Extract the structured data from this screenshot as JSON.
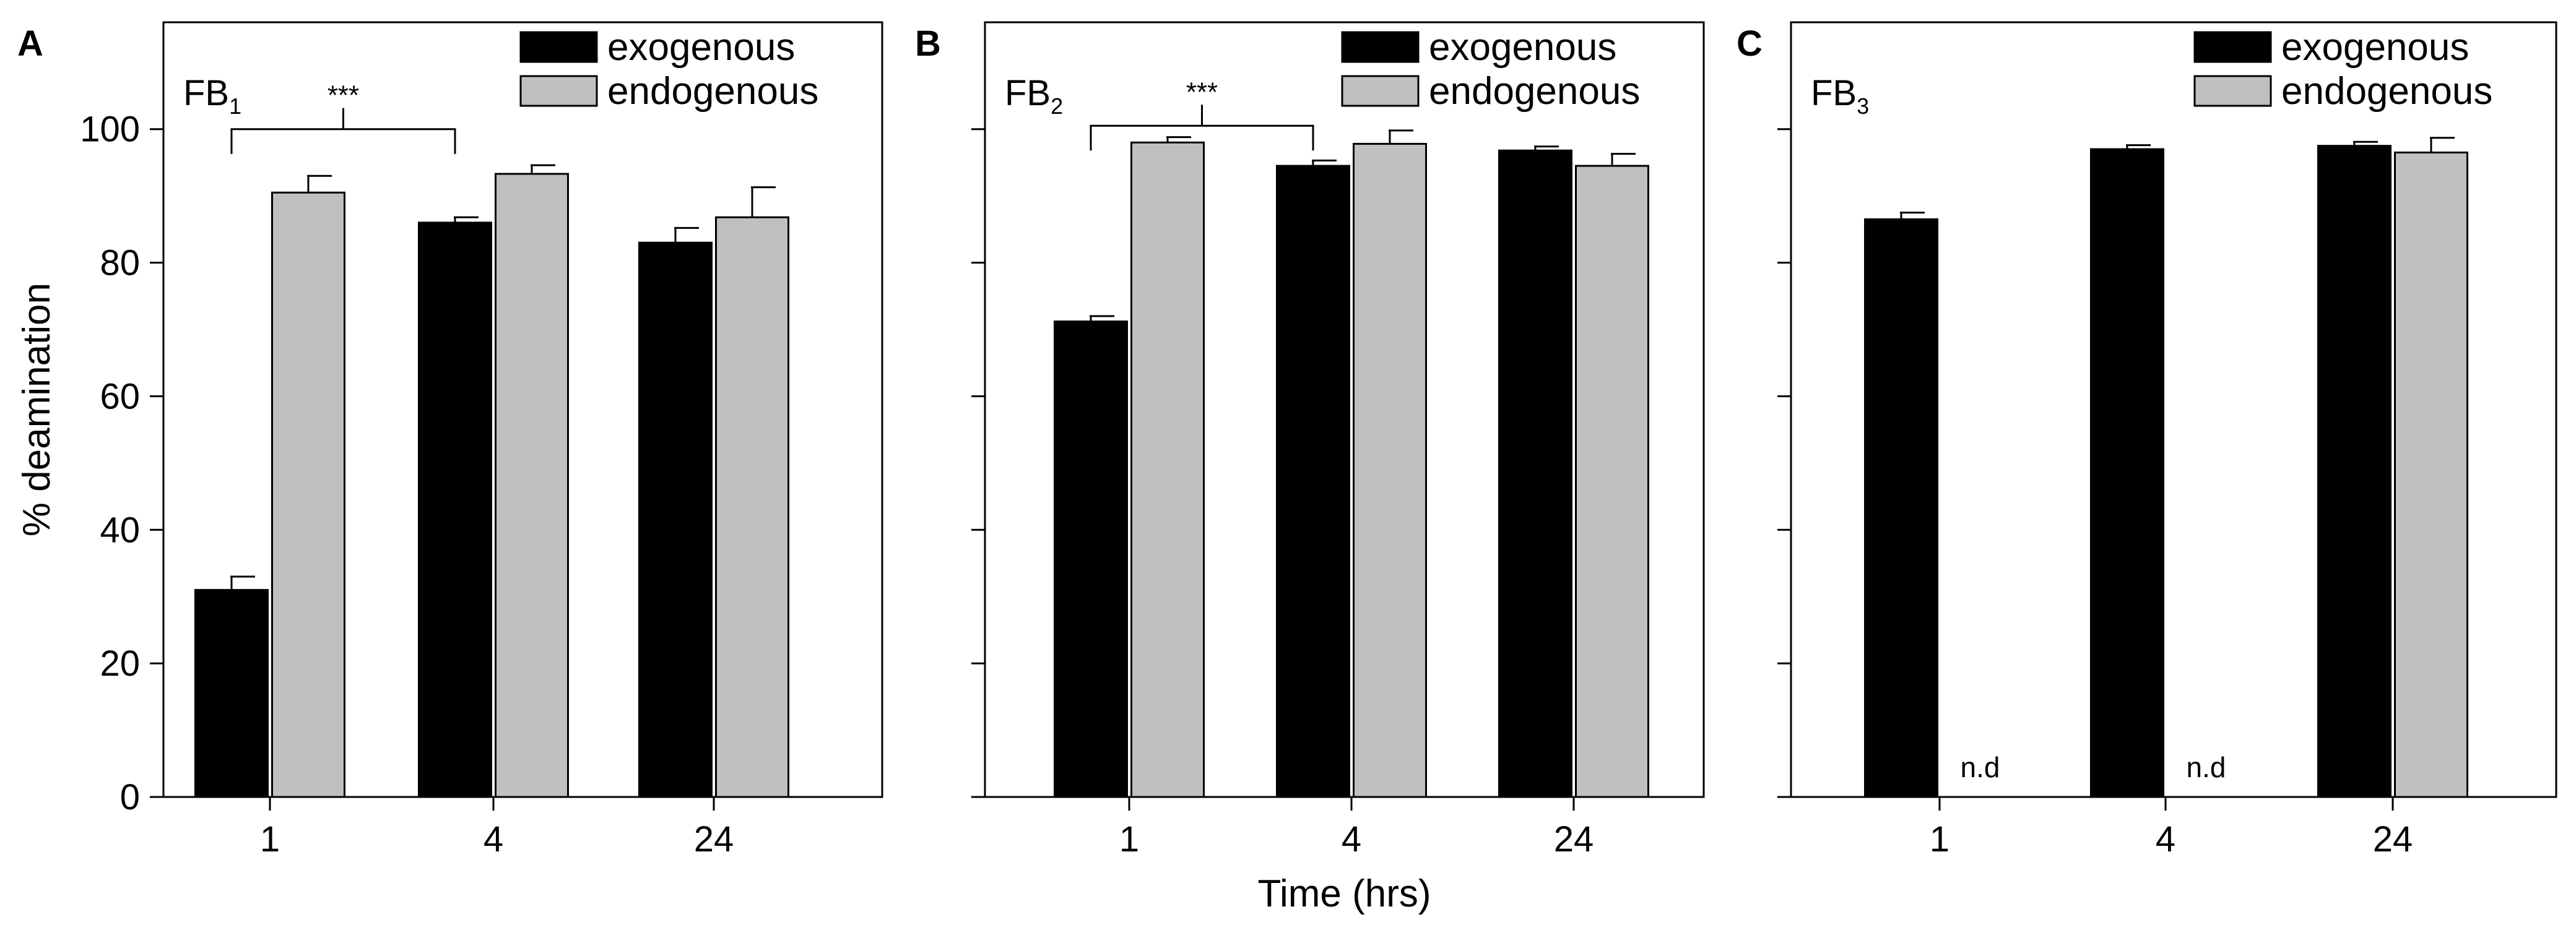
{
  "colors": {
    "exogenous": "#000000",
    "endogenous": "#c0c0c0",
    "axis": "#000000"
  },
  "chart_data": [
    {
      "type": "bar",
      "panel_letter": "A",
      "title_main": "FB",
      "title_sub": "1",
      "categories": [
        "1",
        "4",
        "24"
      ],
      "series": [
        {
          "name": "exogenous",
          "values": [
            31,
            86,
            83
          ],
          "errors": [
            2,
            0.8,
            2.2
          ]
        },
        {
          "name": "endogenous",
          "values": [
            90.5,
            93.3,
            86.8
          ],
          "errors": [
            2.5,
            1.3,
            4.5
          ]
        }
      ],
      "not_detected_label": "",
      "significance": {
        "from": 0,
        "to": 1,
        "label": "***",
        "y": 100
      },
      "xlabel": "",
      "ylabel": "% deamination",
      "ylim": [
        0,
        116
      ],
      "yticks": [
        0,
        20,
        40,
        60,
        80,
        100
      ],
      "legend": "top-right"
    },
    {
      "type": "bar",
      "panel_letter": "B",
      "title_main": "FB",
      "title_sub": "2",
      "categories": [
        "1",
        "4",
        "24"
      ],
      "series": [
        {
          "name": "exogenous",
          "values": [
            71.2,
            94.5,
            96.8
          ],
          "errors": [
            0.8,
            0.8,
            0.6
          ]
        },
        {
          "name": "endogenous",
          "values": [
            98,
            97.8,
            94.5
          ],
          "errors": [
            0.8,
            2,
            1.8
          ]
        }
      ],
      "not_detected_label": "",
      "significance": {
        "from": 0,
        "to": 1,
        "label": "***",
        "y": 100.5
      },
      "xlabel": "Time (hrs)",
      "ylabel": "",
      "ylim": [
        0,
        116
      ],
      "yticks": [
        0,
        20,
        40,
        60,
        80,
        100
      ],
      "legend": "top-right"
    },
    {
      "type": "bar",
      "panel_letter": "C",
      "title_main": "FB",
      "title_sub": "3",
      "categories": [
        "1",
        "4",
        "24"
      ],
      "series": [
        {
          "name": "exogenous",
          "values": [
            86.5,
            97,
            97.5
          ],
          "errors": [
            1,
            0.6,
            0.6
          ]
        },
        {
          "name": "endogenous",
          "values": [
            null,
            null,
            96.5
          ],
          "errors": [
            0,
            0,
            2.2
          ]
        }
      ],
      "not_detected_label": "n.d",
      "significance": null,
      "xlabel": "",
      "ylabel": "",
      "ylim": [
        0,
        116
      ],
      "yticks": [
        0,
        20,
        40,
        60,
        80,
        100
      ],
      "legend": "top-right"
    }
  ]
}
